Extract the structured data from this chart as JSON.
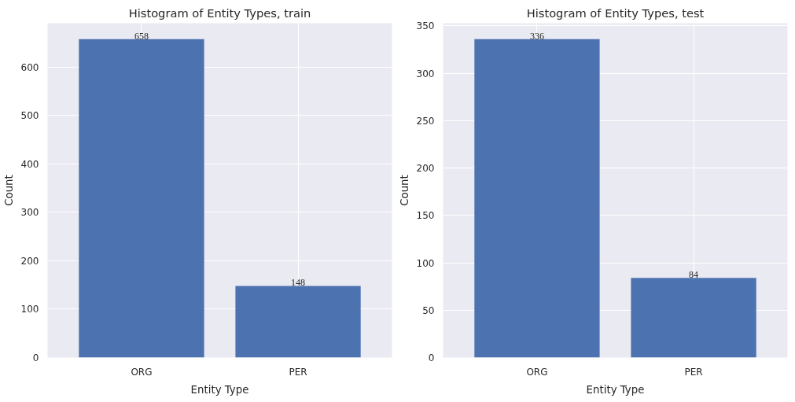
{
  "chart_data": [
    {
      "type": "bar",
      "title": "Histogram of Entity Types, train",
      "xlabel": "Entity Type",
      "ylabel": "Count",
      "categories": [
        "ORG",
        "PER"
      ],
      "values": [
        658,
        148
      ],
      "color": "#4c72b0",
      "ylim": [
        0,
        690.9
      ],
      "yticks": [
        0,
        100,
        200,
        300,
        400,
        500,
        600
      ],
      "grid": true,
      "data_labels": true
    },
    {
      "type": "bar",
      "title": "Histogram of Entity Types, test",
      "xlabel": "Entity Type",
      "ylabel": "Count",
      "categories": [
        "ORG",
        "PER"
      ],
      "values": [
        336,
        84
      ],
      "color": "#4c72b0",
      "ylim": [
        0,
        352.8
      ],
      "yticks": [
        0,
        50,
        100,
        150,
        200,
        250,
        300,
        350
      ],
      "grid": true,
      "data_labels": true
    }
  ]
}
